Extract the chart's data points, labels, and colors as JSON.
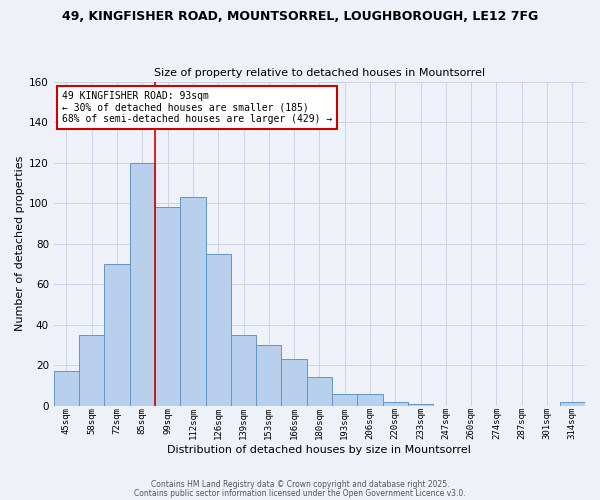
{
  "title_line1": "49, KINGFISHER ROAD, MOUNTSORREL, LOUGHBOROUGH, LE12 7FG",
  "title_line2": "Size of property relative to detached houses in Mountsorrel",
  "xlabel": "Distribution of detached houses by size in Mountsorrel",
  "ylabel": "Number of detached properties",
  "bar_labels": [
    "45sqm",
    "58sqm",
    "72sqm",
    "85sqm",
    "99sqm",
    "112sqm",
    "126sqm",
    "139sqm",
    "153sqm",
    "166sqm",
    "180sqm",
    "193sqm",
    "206sqm",
    "220sqm",
    "233sqm",
    "247sqm",
    "260sqm",
    "274sqm",
    "287sqm",
    "301sqm",
    "314sqm"
  ],
  "bar_values": [
    17,
    35,
    70,
    120,
    98,
    103,
    75,
    35,
    30,
    23,
    14,
    6,
    6,
    2,
    1,
    0,
    0,
    0,
    0,
    0,
    2
  ],
  "bar_color": "#b8d0eb",
  "bar_edge_color": "#6096c8",
  "ylim": [
    0,
    160
  ],
  "yticks": [
    0,
    20,
    40,
    60,
    80,
    100,
    120,
    140,
    160
  ],
  "vline_x_index": 3.5,
  "vline_color": "#cc0000",
  "annotation_title": "49 KINGFISHER ROAD: 93sqm",
  "annotation_line2": "← 30% of detached houses are smaller (185)",
  "annotation_line3": "68% of semi-detached houses are larger (429) →",
  "annotation_box_color": "#cc0000",
  "annotation_text_color": "#000000",
  "annotation_bg": "#ffffff",
  "grid_color": "#c8d4e8",
  "background_color": "#eef2f8",
  "footer_line1": "Contains HM Land Registry data © Crown copyright and database right 2025.",
  "footer_line2": "Contains public sector information licensed under the Open Government Licence v3.0."
}
